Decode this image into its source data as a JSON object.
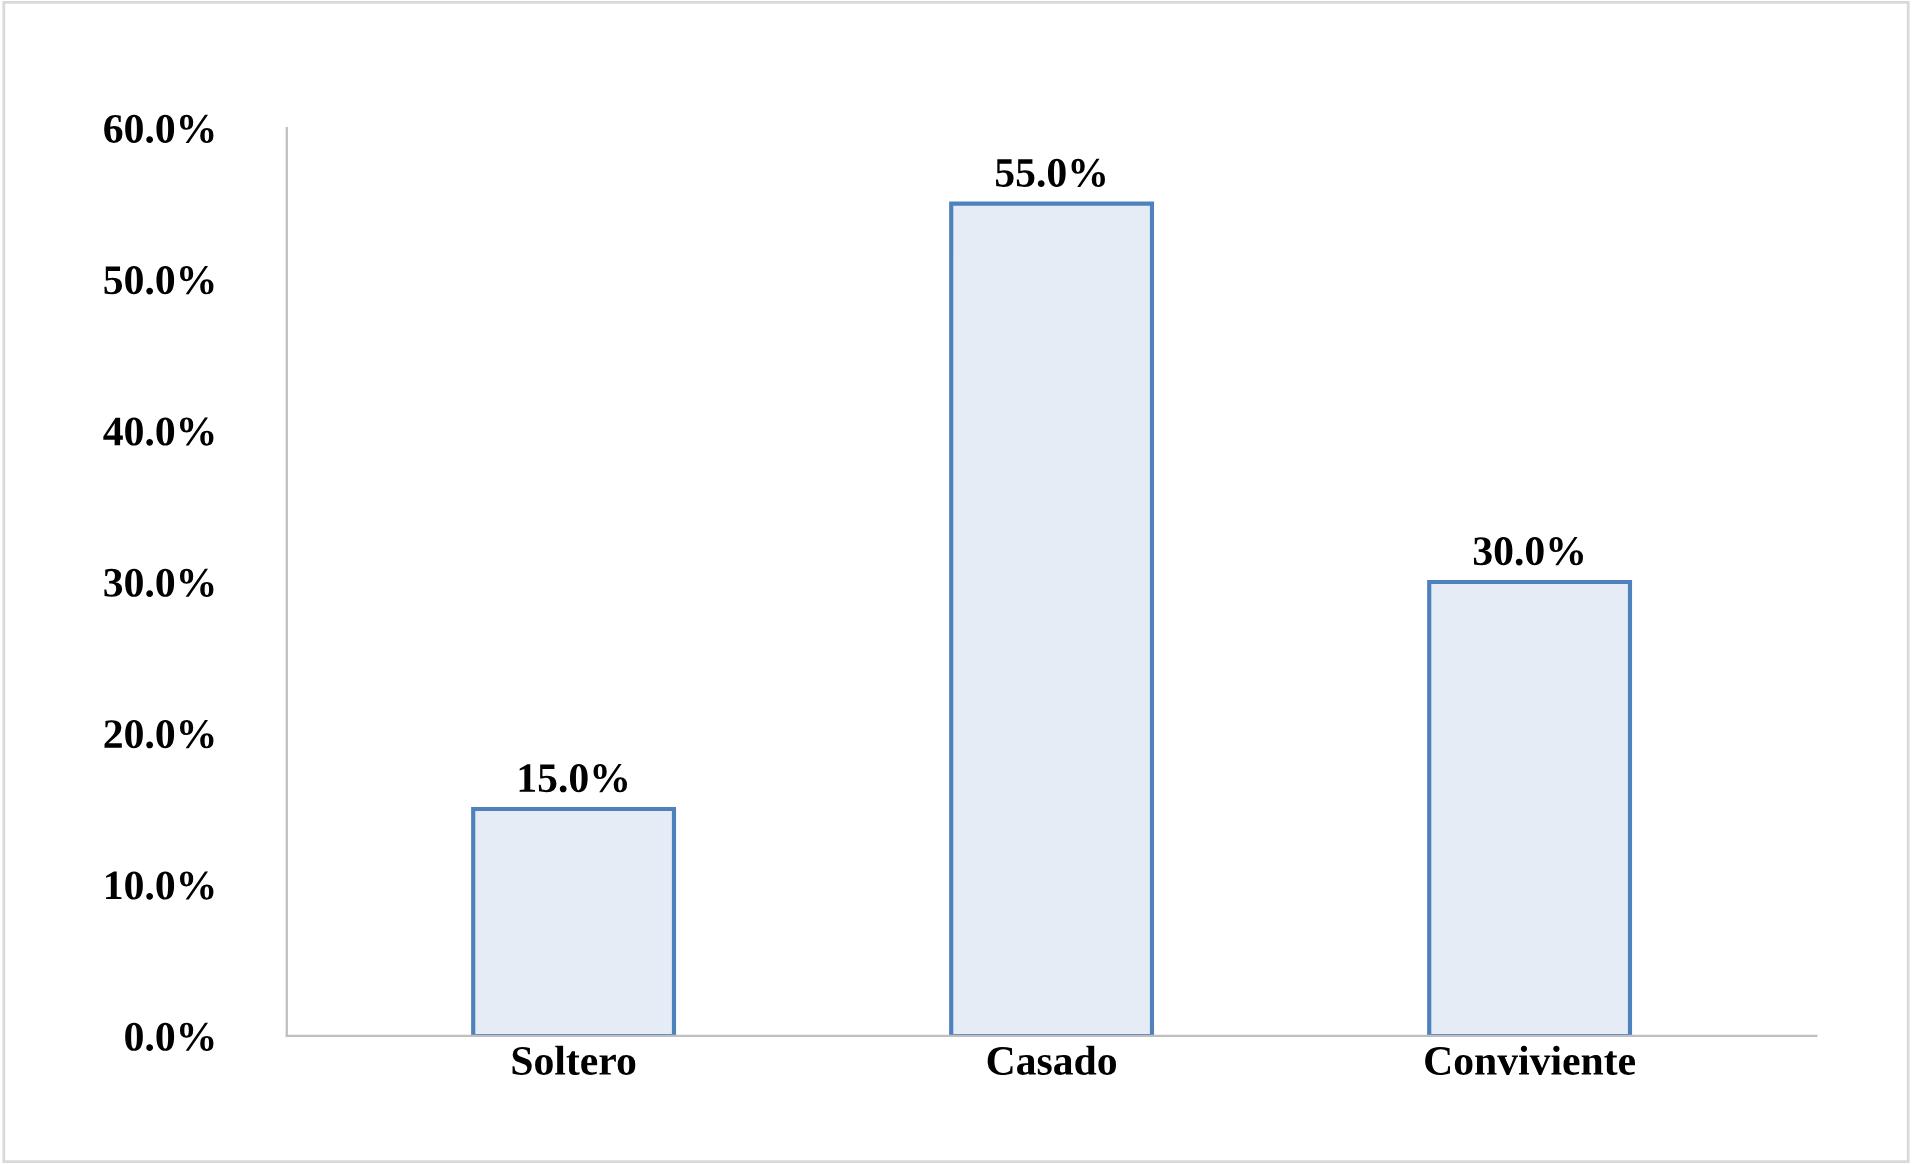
{
  "chart_data": {
    "type": "bar",
    "categories": [
      "Soltero",
      "Casado",
      "Conviviente"
    ],
    "values": [
      15,
      55,
      30
    ],
    "value_labels": [
      "15.0%",
      "55.0%",
      "30.0%"
    ],
    "color": "#4f81bd",
    "ylim": [
      0,
      60
    ],
    "yticks": [
      {
        "value": 0,
        "label": "0.0%"
      },
      {
        "value": 10,
        "label": "10.0%"
      },
      {
        "value": 20,
        "label": "20.0%"
      },
      {
        "value": 30,
        "label": "30.0%"
      },
      {
        "value": 40,
        "label": "40.0%"
      },
      {
        "value": 50,
        "label": "50.0%"
      },
      {
        "value": 60,
        "label": "60.0%"
      }
    ],
    "grid": false,
    "legend": false
  }
}
